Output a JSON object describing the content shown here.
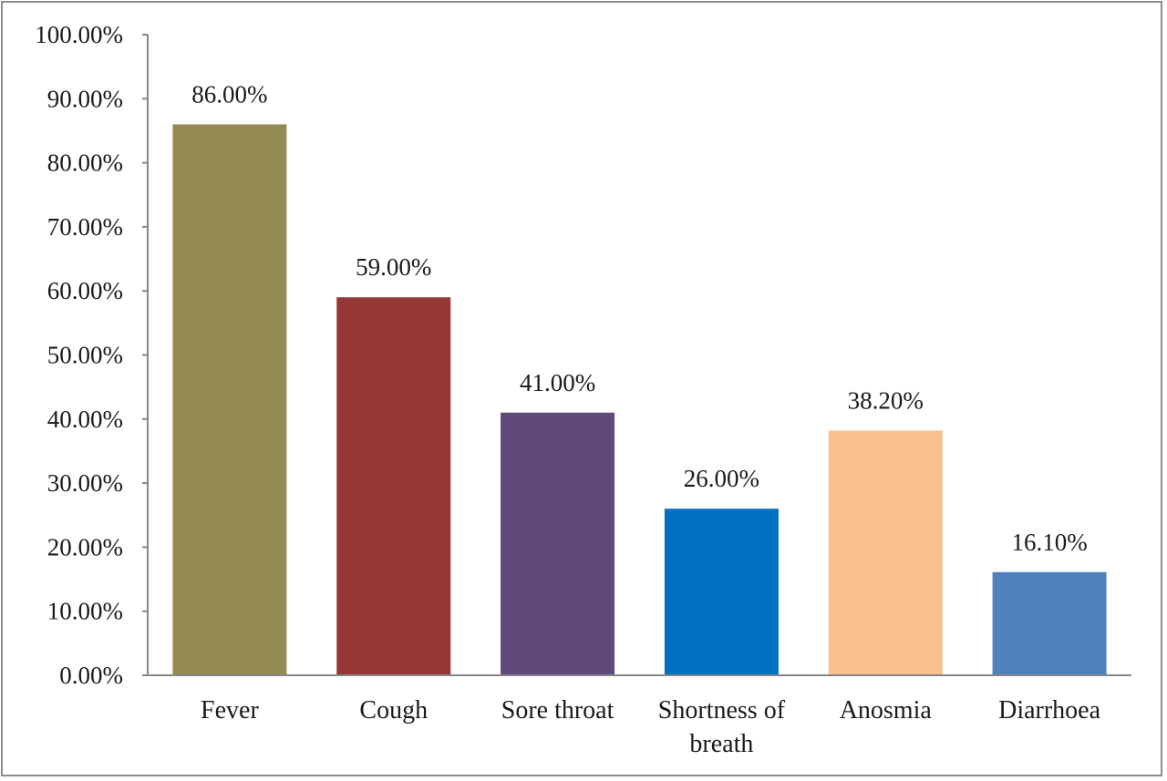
{
  "chart_data": {
    "type": "bar",
    "title": "",
    "xlabel": "",
    "ylabel": "",
    "categories": [
      "Fever",
      "Cough",
      "Sore throat",
      "Shortness of breath",
      "Anosmia",
      "Diarrhoea"
    ],
    "category_lines": [
      [
        "Fever"
      ],
      [
        "Cough"
      ],
      [
        "Sore throat"
      ],
      [
        "Shortness of",
        "breath"
      ],
      [
        "Anosmia"
      ],
      [
        "Diarrhoea"
      ]
    ],
    "values": [
      86.0,
      59.0,
      41.0,
      26.0,
      38.2,
      16.1
    ],
    "data_labels": [
      "86.00%",
      "59.00%",
      "41.00%",
      "26.00%",
      "38.20%",
      "16.10%"
    ],
    "colors": [
      "#948a54",
      "#953735",
      "#604a7b",
      "#0070c0",
      "#fac090",
      "#4f81bd"
    ],
    "ylim": [
      0,
      100
    ],
    "yticks": [
      0,
      10,
      20,
      30,
      40,
      50,
      60,
      70,
      80,
      90,
      100
    ],
    "ytick_labels": [
      "0.00%",
      "10.00%",
      "20.00%",
      "30.00%",
      "40.00%",
      "50.00%",
      "60.00%",
      "70.00%",
      "80.00%",
      "90.00%",
      "100.00%"
    ],
    "grid": false,
    "legend": "none"
  }
}
